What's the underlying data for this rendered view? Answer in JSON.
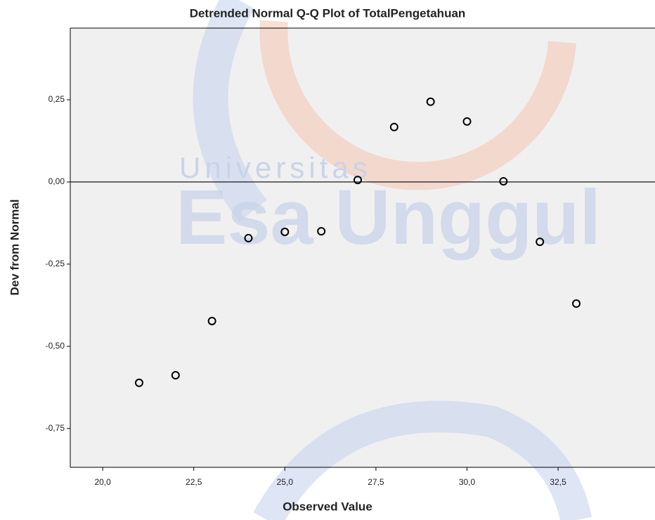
{
  "chart_data": {
    "type": "scatter",
    "title": "Detrended Normal Q-Q Plot of TotalPengetahuan",
    "xlabel": "Observed Value",
    "ylabel": "Dev from Normal",
    "watermark": [
      "Universitas",
      "Esa Unggul"
    ],
    "x": [
      21,
      22,
      23,
      24,
      25,
      26,
      27,
      28,
      29,
      30,
      31,
      32,
      33
    ],
    "values": [
      -0.611,
      -0.588,
      -0.423,
      -0.171,
      -0.152,
      -0.15,
      0.006,
      0.167,
      0.244,
      0.184,
      0.002,
      -0.182,
      -0.37
    ],
    "color": "#000000",
    "reference_line": 0,
    "xlim": [
      19.11,
      35.16
    ],
    "ylim": [
      -0.868,
      0.468
    ],
    "xticks": [
      {
        "value": 20,
        "label": "20,0"
      },
      {
        "value": 22.5,
        "label": "22,5"
      },
      {
        "value": 25,
        "label": "25,0"
      },
      {
        "value": 27.5,
        "label": "27,5"
      },
      {
        "value": 30,
        "label": "30,0"
      },
      {
        "value": 32.5,
        "label": "32,5"
      }
    ],
    "yticks": [
      {
        "value": -0.75,
        "label": "-0,75"
      },
      {
        "value": -0.5,
        "label": "-0,50"
      },
      {
        "value": -0.25,
        "label": "-0,25"
      },
      {
        "value": 0,
        "label": "0,00"
      },
      {
        "value": 0.25,
        "label": "0,25"
      }
    ]
  }
}
